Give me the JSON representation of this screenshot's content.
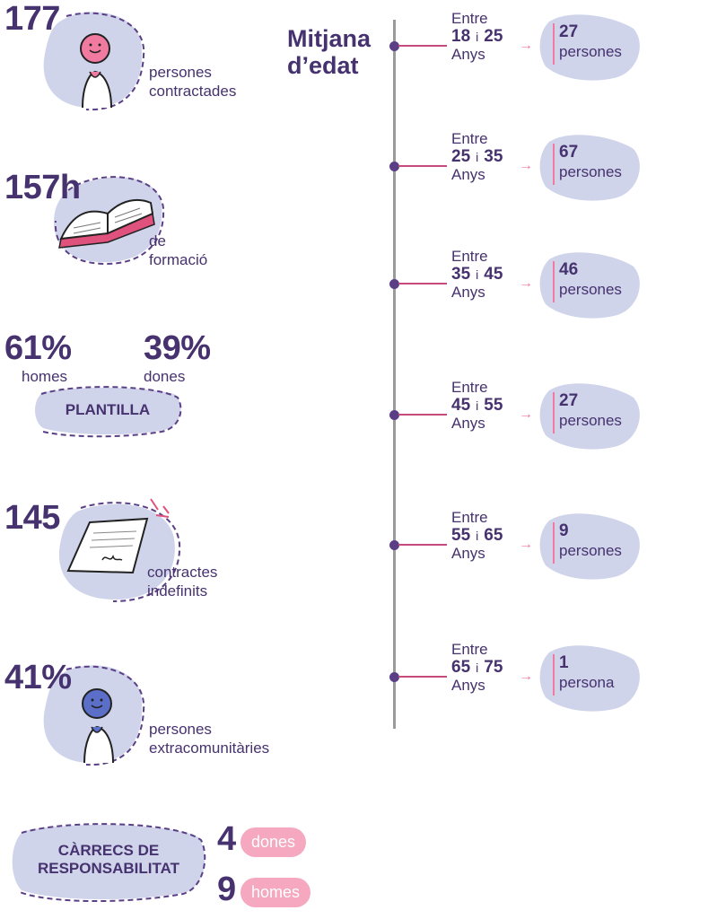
{
  "stats": {
    "hired": {
      "value": "177",
      "label_l1": "persones",
      "label_l2": "contractades"
    },
    "training": {
      "value": "157h",
      "label_l1": "de",
      "label_l2": "formació"
    },
    "staff": {
      "men_pct": "61%",
      "men_label": "homes",
      "women_pct": "39%",
      "women_label": "dones",
      "badge": "PLANTILLA"
    },
    "contracts": {
      "value": "145",
      "label_l1": "contractes",
      "label_l2": "indefinits"
    },
    "extracom": {
      "value": "41%",
      "label_l1": "persones",
      "label_l2": "extracomunitàries"
    },
    "leadership": {
      "badge_l1": "CÀRRECS DE",
      "badge_l2": "RESPONSABILITAT",
      "women_value": "4",
      "women_label": "dones",
      "men_value": "9",
      "men_label": "homes"
    }
  },
  "age": {
    "title_l1": "Mitjana",
    "title_l2": "d’edat",
    "groups": [
      {
        "prefix": "Entre",
        "from": "18",
        "sep": "i",
        "to": "25",
        "suffix": "Anys",
        "count": "27",
        "unit": "persones"
      },
      {
        "prefix": "Entre",
        "from": "25",
        "sep": "i",
        "to": "35",
        "suffix": "Anys",
        "count": "67",
        "unit": "persones"
      },
      {
        "prefix": "Entre",
        "from": "35",
        "sep": "i",
        "to": "45",
        "suffix": "Anys",
        "count": "46",
        "unit": "persones"
      },
      {
        "prefix": "Entre",
        "from": "45",
        "sep": "i",
        "to": "55",
        "suffix": "Anys",
        "count": "27",
        "unit": "persones"
      },
      {
        "prefix": "Entre",
        "from": "55",
        "sep": "i",
        "to": "65",
        "suffix": "Anys",
        "count": "9",
        "unit": "persones"
      },
      {
        "prefix": "Entre",
        "from": "65",
        "sep": "i",
        "to": "75",
        "suffix": "Anys",
        "count": "1",
        "unit": "persona"
      }
    ]
  },
  "colors": {
    "primary": "#46326e",
    "blob": "#cfd4ea",
    "accent_pink": "#e0527e",
    "pill_pink": "#f5a8c0",
    "dot": "#5a3f86"
  }
}
